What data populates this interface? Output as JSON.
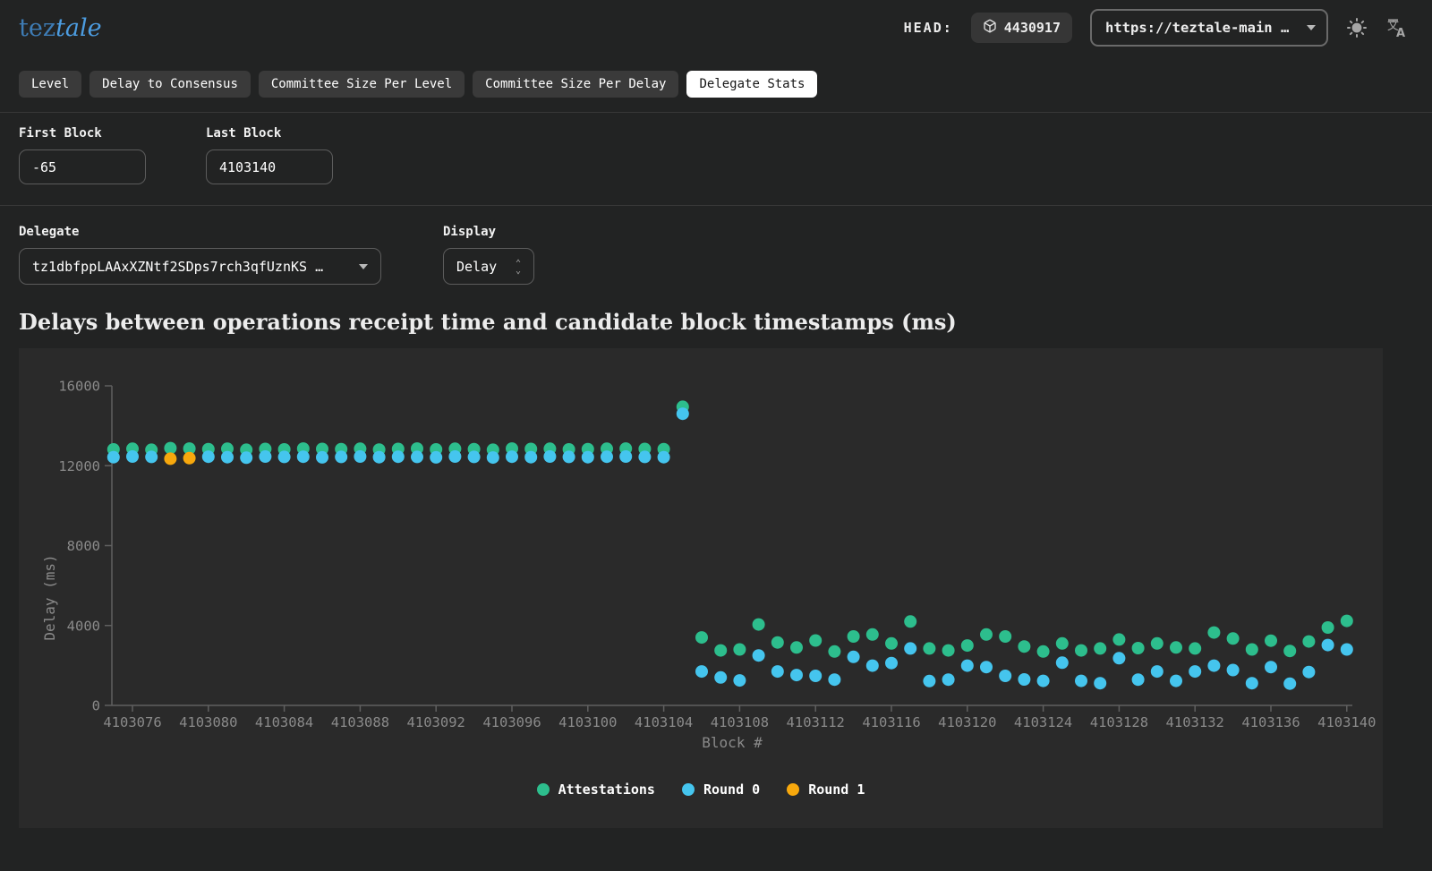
{
  "header": {
    "logo_prefix": "tez",
    "logo_suffix": "tale",
    "head_label": "HEAD:",
    "head_block": "4430917",
    "endpoint": "https://teztale-main …",
    "icons": {
      "badge": "cube-icon",
      "theme": "sun-icon",
      "language": "translate-icon"
    }
  },
  "tabs": [
    {
      "label": "Level",
      "active": false
    },
    {
      "label": "Delay to Consensus",
      "active": false
    },
    {
      "label": "Committee Size Per Level",
      "active": false
    },
    {
      "label": "Committee Size Per Delay",
      "active": false
    },
    {
      "label": "Delegate Stats",
      "active": true
    }
  ],
  "filters": {
    "first_block": {
      "label": "First Block",
      "value": "-65"
    },
    "last_block": {
      "label": "Last Block",
      "value": "4103140"
    },
    "delegate": {
      "label": "Delegate",
      "value": "tz1dbfppLAAxXZNtf2SDps7rch3qfUznKS …"
    },
    "display": {
      "label": "Display",
      "value": "Delay"
    }
  },
  "chart_title": "Delays between operations receipt time and candidate block timestamps (ms)",
  "chart_data": {
    "type": "scatter",
    "title": "Delays between operations receipt time and candidate block timestamps (ms)",
    "xlabel": "Block #",
    "ylabel": "Delay (ms)",
    "ylim": [
      0,
      16000
    ],
    "yticks": [
      0,
      4000,
      8000,
      12000,
      16000
    ],
    "xticks": [
      4103076,
      4103080,
      4103084,
      4103088,
      4103092,
      4103096,
      4103100,
      4103104,
      4103108,
      4103112,
      4103116,
      4103120,
      4103124,
      4103128,
      4103132,
      4103136,
      4103140
    ],
    "grid": false,
    "legend_position": "bottom",
    "axis_color": "#606060",
    "tick_label_color": "#8a8a8a",
    "series": [
      {
        "name": "Attestations",
        "color": "#2dbe8d",
        "points": [
          [
            4103075,
            12820
          ],
          [
            4103076,
            12850
          ],
          [
            4103077,
            12800
          ],
          [
            4103078,
            12880
          ],
          [
            4103079,
            12860
          ],
          [
            4103080,
            12830
          ],
          [
            4103081,
            12850
          ],
          [
            4103082,
            12800
          ],
          [
            4103083,
            12840
          ],
          [
            4103084,
            12820
          ],
          [
            4103085,
            12860
          ],
          [
            4103086,
            12840
          ],
          [
            4103087,
            12830
          ],
          [
            4103088,
            12850
          ],
          [
            4103089,
            12810
          ],
          [
            4103090,
            12840
          ],
          [
            4103091,
            12860
          ],
          [
            4103092,
            12820
          ],
          [
            4103093,
            12850
          ],
          [
            4103094,
            12830
          ],
          [
            4103095,
            12800
          ],
          [
            4103096,
            12860
          ],
          [
            4103097,
            12840
          ],
          [
            4103098,
            12850
          ],
          [
            4103099,
            12820
          ],
          [
            4103100,
            12830
          ],
          [
            4103101,
            12850
          ],
          [
            4103102,
            12860
          ],
          [
            4103103,
            12840
          ],
          [
            4103104,
            12830
          ],
          [
            4103105,
            14950
          ],
          [
            4103106,
            3400
          ],
          [
            4103107,
            2750
          ],
          [
            4103108,
            2800
          ],
          [
            4103109,
            4050
          ],
          [
            4103110,
            3150
          ],
          [
            4103111,
            2900
          ],
          [
            4103112,
            3250
          ],
          [
            4103113,
            2700
          ],
          [
            4103114,
            3450
          ],
          [
            4103115,
            3550
          ],
          [
            4103116,
            3100
          ],
          [
            4103117,
            4200
          ],
          [
            4103118,
            2850
          ],
          [
            4103119,
            2750
          ],
          [
            4103120,
            3000
          ],
          [
            4103121,
            3550
          ],
          [
            4103122,
            3450
          ],
          [
            4103123,
            2950
          ],
          [
            4103124,
            2700
          ],
          [
            4103125,
            3100
          ],
          [
            4103126,
            2750
          ],
          [
            4103127,
            2850
          ],
          [
            4103128,
            3300
          ],
          [
            4103129,
            2870
          ],
          [
            4103130,
            3100
          ],
          [
            4103131,
            2900
          ],
          [
            4103132,
            2850
          ],
          [
            4103133,
            3650
          ],
          [
            4103134,
            3350
          ],
          [
            4103135,
            2800
          ],
          [
            4103136,
            3240
          ],
          [
            4103137,
            2725
          ],
          [
            4103138,
            3200
          ],
          [
            4103139,
            3900
          ],
          [
            4103140,
            4230
          ]
        ]
      },
      {
        "name": "Round 0",
        "color": "#45c5ee",
        "points": [
          [
            4103075,
            12430
          ],
          [
            4103076,
            12460
          ],
          [
            4103077,
            12440
          ],
          [
            4103080,
            12450
          ],
          [
            4103081,
            12430
          ],
          [
            4103082,
            12400
          ],
          [
            4103083,
            12460
          ],
          [
            4103084,
            12440
          ],
          [
            4103085,
            12450
          ],
          [
            4103086,
            12420
          ],
          [
            4103087,
            12440
          ],
          [
            4103088,
            12460
          ],
          [
            4103089,
            12430
          ],
          [
            4103090,
            12450
          ],
          [
            4103091,
            12440
          ],
          [
            4103092,
            12420
          ],
          [
            4103093,
            12460
          ],
          [
            4103094,
            12440
          ],
          [
            4103095,
            12410
          ],
          [
            4103096,
            12450
          ],
          [
            4103097,
            12430
          ],
          [
            4103098,
            12460
          ],
          [
            4103099,
            12440
          ],
          [
            4103100,
            12430
          ],
          [
            4103101,
            12450
          ],
          [
            4103102,
            12460
          ],
          [
            4103103,
            12440
          ],
          [
            4103104,
            12430
          ],
          [
            4103105,
            14600
          ],
          [
            4103106,
            1700
          ],
          [
            4103107,
            1400
          ],
          [
            4103108,
            1250
          ],
          [
            4103109,
            2500
          ],
          [
            4103110,
            1700
          ],
          [
            4103111,
            1520
          ],
          [
            4103112,
            1480
          ],
          [
            4103113,
            1290
          ],
          [
            4103114,
            2430
          ],
          [
            4103115,
            1990
          ],
          [
            4103116,
            2120
          ],
          [
            4103117,
            2850
          ],
          [
            4103118,
            1220
          ],
          [
            4103119,
            1290
          ],
          [
            4103120,
            1990
          ],
          [
            4103121,
            1920
          ],
          [
            4103122,
            1480
          ],
          [
            4103123,
            1300
          ],
          [
            4103124,
            1230
          ],
          [
            4103125,
            2140
          ],
          [
            4103126,
            1230
          ],
          [
            4103127,
            1110
          ],
          [
            4103128,
            2360
          ],
          [
            4103129,
            1290
          ],
          [
            4103130,
            1700
          ],
          [
            4103131,
            1230
          ],
          [
            4103132,
            1700
          ],
          [
            4103133,
            1990
          ],
          [
            4103134,
            1770
          ],
          [
            4103135,
            1110
          ],
          [
            4103136,
            1920
          ],
          [
            4103137,
            1090
          ],
          [
            4103138,
            1670
          ],
          [
            4103139,
            3020
          ],
          [
            4103140,
            2800
          ]
        ]
      },
      {
        "name": "Round 1",
        "color": "#f7a80d",
        "points": [
          [
            4103078,
            12350
          ],
          [
            4103079,
            12380
          ]
        ]
      }
    ]
  }
}
